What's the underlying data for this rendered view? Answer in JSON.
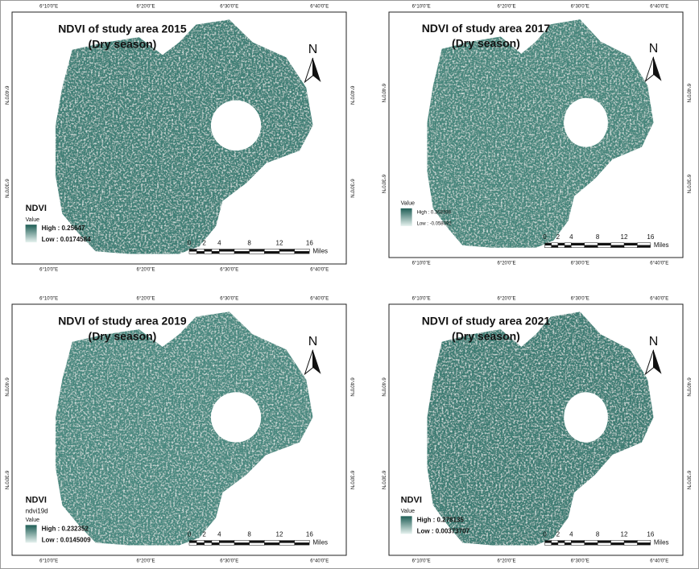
{
  "panels": [
    {
      "title": "NDVI of study area 2015",
      "subtitle": "(Dry season)",
      "north": "N",
      "legend": {
        "title": "NDVI",
        "value_label": "Value",
        "high": "High : 0.25647",
        "low": "Low : 0.0174584"
      },
      "scale": {
        "labels": [
          "0",
          "2",
          "4",
          "8",
          "12",
          "16"
        ],
        "unit": "Miles"
      },
      "top_labels": [
        "6°10'0\"E",
        "6°20'0\"E",
        "6°30'0\"E",
        "6°40'0\"E"
      ],
      "bottom_labels": [
        "6°10'0\"E",
        "6°20'0\"E",
        "6°30'0\"E",
        "6°40'0\"E"
      ],
      "left_labels": [
        "6°40'0\"N",
        "6°30'0\"N"
      ],
      "right_labels": [
        "6°40'0\"N",
        "6°30'0\"N"
      ]
    },
    {
      "title": "NDVI of study area 2017",
      "subtitle": "(Dry season)",
      "north": "N",
      "legend": {
        "value_label": "Value",
        "high": "High : 0.368398",
        "low": "Low : -0.058092"
      },
      "scale": {
        "labels": [
          "0",
          "2",
          "4",
          "8",
          "12",
          "16"
        ],
        "unit": "Miles"
      },
      "top_labels": [
        "6°10'0\"E",
        "6°20'0\"E",
        "6°30'0\"E",
        "6°40'0\"E"
      ],
      "bottom_labels": [
        "6°10'0\"E",
        "6°20'0\"E",
        "6°30'0\"E",
        "6°40'0\"E"
      ],
      "left_labels": [
        "6°40'0\"N",
        "6°30'0\"N"
      ],
      "right_labels": [
        "6°40'0\"N",
        "6°30'0\"N"
      ]
    },
    {
      "title": "NDVI of study area 2019",
      "subtitle": "(Dry season)",
      "north": "N",
      "legend": {
        "title": "NDVI",
        "layer": "ndvi19d",
        "value_label": "Value",
        "high": "High : 0.232352",
        "low": "Low : 0.0145009"
      },
      "scale": {
        "labels": [
          "0",
          "2",
          "4",
          "8",
          "12",
          "16"
        ],
        "unit": "Miles"
      },
      "top_labels": [
        "6°10'0\"E",
        "6°20'0\"E",
        "6°30'0\"E",
        "6°40'0\"E"
      ],
      "bottom_labels": [
        "6°10'0\"E",
        "6°20'0\"E",
        "6°30'0\"E",
        "6°40'0\"E"
      ],
      "left_labels": [
        "6°40'0\"N",
        "6°30'0\"N"
      ],
      "right_labels": [
        "6°40'0\"N",
        "6°30'0\"N"
      ]
    },
    {
      "title": "NDVI of study area 2021",
      "subtitle": "(Dry season)",
      "north": "N",
      "legend": {
        "title": "NDVI",
        "value_label": "Value",
        "high": "High : 0.278135",
        "low": "Low : 0.00373707"
      },
      "scale": {
        "labels": [
          "0",
          "2",
          "4",
          "8",
          "12",
          "16"
        ],
        "unit": "Miles"
      },
      "top_labels": [
        "6°10'0\"E",
        "6°20'0\"E",
        "6°30'0\"E",
        "6°40'0\"E"
      ],
      "bottom_labels": [
        "6°10'0\"E",
        "6°20'0\"E",
        "6°30'0\"E",
        "6°40'0\"E"
      ],
      "left_labels": [
        "6°40'0\"N",
        "6°30'0\"N"
      ],
      "right_labels": [
        "6°40'0\"N",
        "6°30'0\"N"
      ]
    }
  ]
}
